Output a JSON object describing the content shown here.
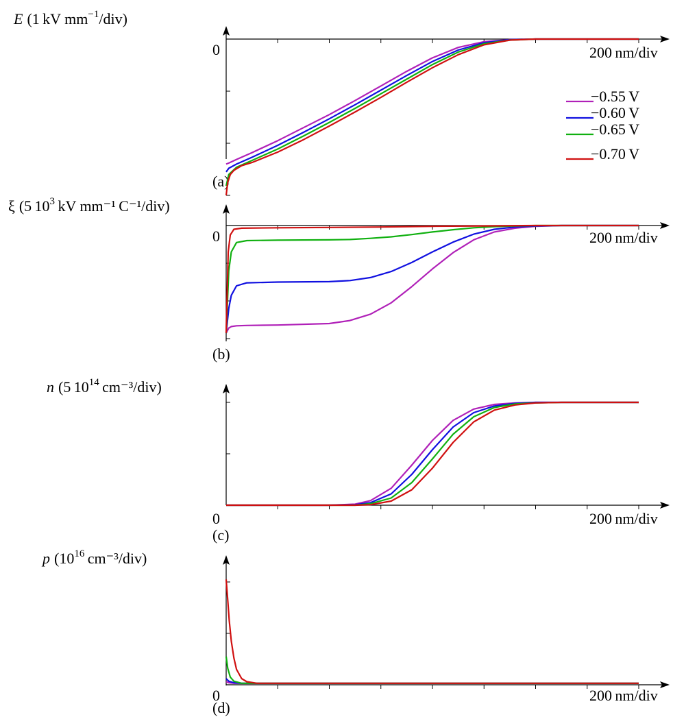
{
  "chart_data": [
    {
      "panel": "(a)",
      "type": "line",
      "ylabel": "E (1 kV mm^-1/div)",
      "xlabel": "200 nm/div",
      "origin_label": "0",
      "ylim": [
        -3.1,
        0.1
      ],
      "xlim": [
        0,
        8
      ],
      "series": [
        {
          "name": "−0.55 V",
          "color": "#b020b8",
          "x": [
            0,
            0.05,
            0.2,
            0.5,
            1,
            1.5,
            2,
            2.5,
            3,
            3.5,
            4,
            4.5,
            5,
            5.5,
            6,
            7,
            8
          ],
          "y": [
            -2.4,
            -2.38,
            -2.31,
            -2.18,
            -1.95,
            -1.7,
            -1.45,
            -1.18,
            -0.9,
            -0.62,
            -0.36,
            -0.16,
            -0.05,
            -0.01,
            0,
            0,
            0
          ]
        },
        {
          "name": "−0.60 V",
          "color": "#1010e0",
          "x": [
            0,
            0.05,
            0.2,
            0.5,
            1,
            1.5,
            2,
            2.5,
            3,
            3.5,
            4,
            4.5,
            5,
            5.5,
            6,
            7,
            8
          ],
          "y": [
            -2.55,
            -2.48,
            -2.4,
            -2.27,
            -2.04,
            -1.79,
            -1.53,
            -1.26,
            -0.98,
            -0.7,
            -0.43,
            -0.21,
            -0.07,
            -0.01,
            0,
            0,
            0
          ]
        },
        {
          "name": "−0.65 V",
          "color": "#10b010",
          "x": [
            0,
            0.05,
            0.2,
            0.5,
            1,
            1.5,
            2,
            2.5,
            3,
            3.5,
            4,
            4.5,
            5,
            5.5,
            6,
            7,
            8
          ],
          "y": [
            -2.82,
            -2.6,
            -2.46,
            -2.33,
            -2.11,
            -1.86,
            -1.6,
            -1.33,
            -1.05,
            -0.77,
            -0.49,
            -0.25,
            -0.09,
            -0.02,
            0,
            0,
            0
          ]
        },
        {
          "name": "−0.70 V",
          "color": "#d01010",
          "x": [
            0,
            0.03,
            0.08,
            0.15,
            0.3,
            0.5,
            1,
            1.5,
            2,
            2.5,
            3,
            3.5,
            4,
            4.5,
            5,
            5.5,
            6,
            7,
            8
          ],
          "y": [
            -3.0,
            -2.75,
            -2.6,
            -2.52,
            -2.43,
            -2.37,
            -2.17,
            -1.93,
            -1.67,
            -1.4,
            -1.12,
            -0.83,
            -0.55,
            -0.3,
            -0.11,
            -0.02,
            0,
            0,
            0
          ]
        }
      ]
    },
    {
      "panel": "(b)",
      "type": "line",
      "ylabel": "ξ (5 10^3 kV mm^-1 C^-1/div)",
      "xlabel": "200 nm/div",
      "origin_label": "0",
      "ylim": [
        -3.1,
        0.1
      ],
      "xlim": [
        0,
        8
      ],
      "series": [
        {
          "name": "−0.55 V",
          "color": "#b020b8",
          "x": [
            0,
            0.05,
            0.1,
            0.2,
            0.4,
            1,
            2,
            2.4,
            2.8,
            3.2,
            3.6,
            4,
            4.4,
            4.8,
            5.2,
            5.6,
            6,
            6.5,
            7,
            8
          ],
          "y": [
            -2.85,
            -2.72,
            -2.68,
            -2.66,
            -2.65,
            -2.64,
            -2.6,
            -2.52,
            -2.35,
            -2.05,
            -1.62,
            -1.15,
            -0.72,
            -0.38,
            -0.17,
            -0.07,
            -0.02,
            0,
            0,
            0
          ]
        },
        {
          "name": "−0.60 V",
          "color": "#1010e0",
          "x": [
            0,
            0.05,
            0.1,
            0.2,
            0.4,
            1,
            2,
            2.4,
            2.8,
            3.2,
            3.6,
            4,
            4.4,
            4.8,
            5.2,
            5.6,
            6,
            6.5,
            7,
            8
          ],
          "y": [
            -2.85,
            -2.2,
            -1.85,
            -1.6,
            -1.52,
            -1.5,
            -1.49,
            -1.46,
            -1.38,
            -1.22,
            -0.98,
            -0.7,
            -0.44,
            -0.23,
            -0.1,
            -0.04,
            -0.01,
            0,
            0,
            0
          ]
        },
        {
          "name": "−0.65 V",
          "color": "#10b010",
          "x": [
            0,
            0.05,
            0.1,
            0.2,
            0.4,
            1,
            2,
            2.4,
            2.8,
            3.2,
            3.6,
            4,
            4.4,
            4.8,
            5.2,
            5.6,
            6,
            6.5,
            7,
            8
          ],
          "y": [
            -2.85,
            -1.2,
            -0.7,
            -0.45,
            -0.4,
            -0.39,
            -0.38,
            -0.37,
            -0.34,
            -0.3,
            -0.24,
            -0.17,
            -0.11,
            -0.06,
            -0.03,
            -0.01,
            0,
            0,
            0,
            0
          ]
        },
        {
          "name": "−0.70 V",
          "color": "#d01010",
          "x": [
            0,
            0.04,
            0.08,
            0.15,
            0.3,
            1,
            2,
            3,
            4,
            5,
            6,
            7,
            8
          ],
          "y": [
            -2.85,
            -0.7,
            -0.25,
            -0.1,
            -0.07,
            -0.06,
            -0.05,
            -0.04,
            -0.02,
            -0.01,
            0,
            0,
            0
          ]
        }
      ]
    },
    {
      "panel": "(c)",
      "type": "line",
      "ylabel": "n (5 10^14 cm^-3/div)",
      "xlabel": "200 nm/div",
      "origin_label": "0",
      "ylim": [
        -0.05,
        2.3
      ],
      "xlim": [
        0,
        8
      ],
      "series": [
        {
          "name": "−0.55 V",
          "color": "#b020b8",
          "x": [
            0,
            1,
            1.5,
            2,
            2.5,
            2.8,
            3.2,
            3.6,
            4,
            4.4,
            4.8,
            5.2,
            5.6,
            6,
            6.5,
            7,
            8
          ],
          "y": [
            0,
            0,
            0,
            0,
            0.02,
            0.09,
            0.33,
            0.78,
            1.26,
            1.65,
            1.87,
            1.96,
            1.99,
            2,
            2,
            2,
            2
          ]
        },
        {
          "name": "−0.60 V",
          "color": "#1010e0",
          "x": [
            0,
            1,
            1.5,
            2,
            2.5,
            2.8,
            3.2,
            3.6,
            4,
            4.4,
            4.8,
            5.2,
            5.6,
            6,
            6.5,
            7,
            8
          ],
          "y": [
            0,
            0,
            0,
            0,
            0.01,
            0.05,
            0.22,
            0.6,
            1.08,
            1.52,
            1.8,
            1.93,
            1.98,
            2,
            2,
            2,
            2
          ]
        },
        {
          "name": "−0.65 V",
          "color": "#10b010",
          "x": [
            0,
            1,
            1.5,
            2,
            2.5,
            2.8,
            3.2,
            3.6,
            4,
            4.4,
            4.8,
            5.2,
            5.6,
            6,
            6.5,
            7,
            8
          ],
          "y": [
            0,
            0,
            0,
            0,
            0,
            0.03,
            0.14,
            0.44,
            0.9,
            1.38,
            1.72,
            1.9,
            1.97,
            1.99,
            2,
            2,
            2
          ]
        },
        {
          "name": "−0.70 V",
          "color": "#d01010",
          "x": [
            0,
            1,
            1.5,
            2,
            2.5,
            2.8,
            3.2,
            3.6,
            4,
            4.4,
            4.8,
            5.2,
            5.6,
            6,
            6.5,
            7,
            8
          ],
          "y": [
            0,
            0,
            0,
            0,
            0,
            0.01,
            0.08,
            0.3,
            0.72,
            1.22,
            1.62,
            1.85,
            1.95,
            1.99,
            2,
            2,
            2
          ]
        }
      ]
    },
    {
      "panel": "(d)",
      "type": "line",
      "ylabel": "p (10^16 cm^-3/div)",
      "xlabel": "200 nm/div",
      "origin_label": "0",
      "ylim": [
        -0.05,
        2.3
      ],
      "xlim": [
        0,
        8
      ],
      "series": [
        {
          "name": "−0.55 V",
          "color": "#b020b8",
          "x": [
            0,
            0.05,
            0.15,
            0.3,
            1,
            8
          ],
          "y": [
            0.06,
            0.04,
            0.03,
            0.03,
            0.03,
            0.03
          ]
        },
        {
          "name": "−0.60 V",
          "color": "#1010e0",
          "x": [
            0,
            0.05,
            0.15,
            0.3,
            1,
            8
          ],
          "y": [
            0.12,
            0.07,
            0.04,
            0.03,
            0.03,
            0.03
          ]
        },
        {
          "name": "−0.65 V",
          "color": "#10b010",
          "x": [
            0,
            0.03,
            0.08,
            0.15,
            0.3,
            1,
            8
          ],
          "y": [
            0.55,
            0.32,
            0.15,
            0.07,
            0.03,
            0.03,
            0.03
          ]
        },
        {
          "name": "−0.70 V",
          "color": "#d01010",
          "x": [
            0,
            0.03,
            0.06,
            0.1,
            0.15,
            0.2,
            0.3,
            0.4,
            0.6,
            1,
            8
          ],
          "y": [
            2.05,
            1.65,
            1.25,
            0.85,
            0.52,
            0.3,
            0.12,
            0.06,
            0.03,
            0.03,
            0.03
          ]
        }
      ]
    }
  ],
  "panels_text": [
    {
      "ylabel_main": "E",
      "ylabel_rest": "(1 kV  mm",
      "ylabel_sup": "−1",
      "ylabel_end": "/div)",
      "xlabel": "200 nm/div",
      "zero": "0",
      "tag": "(a)"
    },
    {
      "ylabel_main": "ξ",
      "ylabel_rest": "(5 10",
      "ylabel_sup": "3",
      "ylabel_end": " kV  mm⁻¹ C⁻¹/div)",
      "xlabel": "200 nm/div",
      "zero": "0",
      "tag": "(b)"
    },
    {
      "ylabel_main": "n",
      "ylabel_rest": "(5 10",
      "ylabel_sup": "14",
      "ylabel_end": " cm⁻³/div)",
      "xlabel": "200 nm/div",
      "zero": "0",
      "tag": "(c)"
    },
    {
      "ylabel_main": "p",
      "ylabel_rest": "(10",
      "ylabel_sup": "16",
      "ylabel_end": " cm⁻³/div)",
      "xlabel": "200 nm/div",
      "zero": "0",
      "tag": "(d)"
    }
  ],
  "legend": [
    {
      "label": "−0.55 V",
      "color": "#b020b8"
    },
    {
      "label": "−0.60 V",
      "color": "#1010e0"
    },
    {
      "label": "−0.65 V",
      "color": "#10b010"
    },
    {
      "label": "−0.70 V",
      "color": "#d01010"
    }
  ]
}
